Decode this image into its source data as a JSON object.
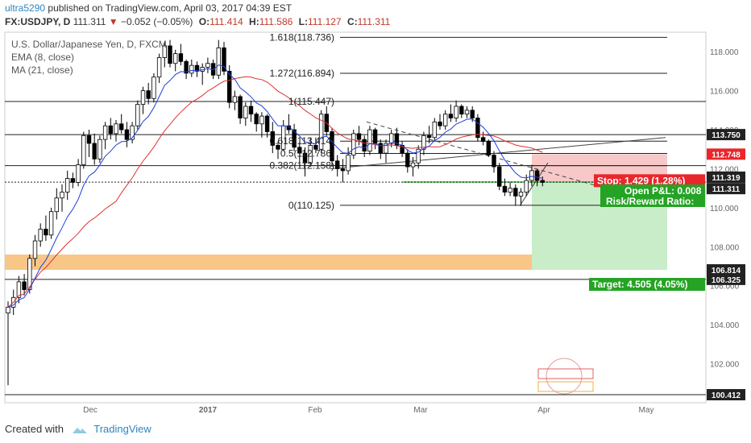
{
  "header": {
    "user": "ultra5290",
    "published": "published on TradingView.com, April 03, 2017 04:39 EST",
    "symbol": "FX:USDJPY, D",
    "last": "111.311",
    "change_arrow": "▼",
    "change": "−0.052 (−0.05%)",
    "o_label": "O:",
    "o": "111.414",
    "h_label": "H:",
    "h": "111.586",
    "l_label": "L:",
    "l": "111.127",
    "c_label": "C:",
    "c": "111.311"
  },
  "legend": {
    "title": "U.S. Dollar/Japanese Yen, D, FXCM",
    "ema": "EMA (8, close)",
    "ma": "MA (21, close)"
  },
  "footer": {
    "created_with": "Created with",
    "brand": "TradingView"
  },
  "colors": {
    "up": "#ffffff",
    "down": "#000000",
    "ema": "#1f3fd6",
    "ma": "#e03030",
    "stop_zone": "#f8c8c8",
    "target_zone": "#c9ecc9",
    "support_band": "#f7c07a",
    "stop_tag": "#e8262c",
    "target_tag": "#25a325",
    "price_tag": "#222222"
  },
  "chart_data": {
    "type": "candlestick",
    "ylim": [
      100.0,
      119.0
    ],
    "y_ticks": [
      "118.000",
      "116.000",
      "114.000",
      "112.000",
      "110.000",
      "108.000",
      "106.000",
      "104.000",
      "102.000"
    ],
    "x_ticks": [
      "Dec",
      "2017",
      "Feb",
      "Mar",
      "Apr",
      "May"
    ],
    "candles": [
      [
        104.6,
        105.2,
        100.9,
        104.9
      ],
      [
        104.9,
        105.8,
        104.5,
        105.4
      ],
      [
        105.4,
        106.5,
        105.1,
        106.2
      ],
      [
        106.2,
        106.6,
        105.5,
        105.8
      ],
      [
        105.8,
        107.6,
        105.6,
        107.4
      ],
      [
        107.4,
        108.6,
        107.0,
        108.3
      ],
      [
        108.3,
        109.2,
        108.0,
        108.9
      ],
      [
        108.9,
        109.6,
        108.3,
        108.6
      ],
      [
        108.6,
        110.0,
        108.4,
        109.8
      ],
      [
        109.8,
        111.0,
        109.4,
        110.5
      ],
      [
        110.5,
        111.2,
        109.8,
        110.8
      ],
      [
        110.8,
        111.9,
        110.4,
        111.5
      ],
      [
        111.5,
        111.8,
        111.0,
        111.3
      ],
      [
        111.3,
        112.5,
        111.1,
        112.2
      ],
      [
        112.2,
        113.9,
        112.0,
        113.7
      ],
      [
        113.7,
        114.0,
        112.6,
        113.3
      ],
      [
        113.3,
        113.8,
        112.2,
        112.5
      ],
      [
        112.5,
        113.7,
        112.3,
        113.5
      ],
      [
        113.5,
        114.4,
        113.0,
        114.2
      ],
      [
        114.2,
        114.6,
        113.5,
        113.8
      ],
      [
        113.8,
        114.5,
        113.4,
        114.3
      ],
      [
        114.3,
        114.8,
        113.8,
        114.0
      ],
      [
        114.0,
        114.4,
        113.1,
        113.5
      ],
      [
        113.5,
        114.4,
        113.3,
        114.2
      ],
      [
        114.2,
        115.5,
        114.0,
        115.3
      ],
      [
        115.3,
        116.2,
        114.8,
        116.0
      ],
      [
        116.0,
        116.4,
        115.3,
        115.6
      ],
      [
        115.6,
        116.9,
        115.4,
        116.7
      ],
      [
        116.7,
        117.9,
        116.4,
        117.7
      ],
      [
        117.7,
        118.5,
        117.2,
        118.3
      ],
      [
        118.3,
        118.6,
        117.2,
        117.4
      ],
      [
        117.4,
        118.1,
        117.0,
        117.9
      ],
      [
        117.9,
        118.4,
        117.3,
        117.5
      ],
      [
        117.5,
        117.6,
        116.6,
        116.9
      ],
      [
        116.9,
        117.6,
        116.7,
        117.3
      ],
      [
        117.3,
        117.5,
        116.7,
        117.0
      ],
      [
        117.0,
        117.4,
        116.3,
        117.2
      ],
      [
        117.2,
        117.7,
        116.9,
        117.4
      ],
      [
        117.4,
        117.6,
        116.6,
        116.8
      ],
      [
        116.8,
        118.6,
        116.6,
        118.2
      ],
      [
        118.2,
        118.5,
        116.8,
        117.0
      ],
      [
        117.0,
        117.3,
        115.1,
        115.4
      ],
      [
        115.4,
        116.0,
        115.0,
        115.7
      ],
      [
        115.7,
        115.8,
        114.3,
        114.6
      ],
      [
        114.6,
        115.4,
        114.2,
        115.2
      ],
      [
        115.2,
        115.5,
        114.4,
        114.8
      ],
      [
        114.8,
        114.9,
        113.9,
        114.3
      ],
      [
        114.3,
        114.9,
        113.6,
        114.7
      ],
      [
        114.7,
        114.8,
        113.6,
        113.9
      ],
      [
        113.9,
        114.4,
        112.8,
        113.2
      ],
      [
        113.2,
        113.4,
        112.5,
        113.0
      ],
      [
        113.0,
        114.5,
        112.9,
        114.2
      ],
      [
        114.2,
        114.8,
        113.8,
        114.0
      ],
      [
        114.0,
        114.3,
        112.9,
        113.1
      ],
      [
        113.1,
        113.4,
        112.1,
        112.8
      ],
      [
        112.8,
        113.1,
        111.6,
        112.3
      ],
      [
        112.3,
        113.6,
        112.1,
        113.2
      ],
      [
        113.2,
        113.6,
        112.8,
        113.0
      ],
      [
        113.0,
        115.0,
        112.8,
        114.8
      ],
      [
        114.8,
        115.2,
        113.7,
        113.9
      ],
      [
        113.9,
        114.1,
        112.1,
        112.4
      ],
      [
        112.4,
        112.7,
        111.6,
        112.0
      ],
      [
        112.0,
        112.5,
        111.3,
        111.9
      ],
      [
        111.9,
        113.1,
        111.7,
        112.7
      ],
      [
        112.7,
        114.0,
        112.5,
        113.8
      ],
      [
        113.8,
        114.2,
        113.2,
        113.5
      ],
      [
        113.5,
        113.7,
        112.6,
        112.9
      ],
      [
        112.9,
        114.2,
        112.7,
        114.0
      ],
      [
        114.0,
        114.1,
        113.0,
        113.3
      ],
      [
        113.3,
        113.5,
        112.5,
        112.8
      ],
      [
        112.8,
        113.5,
        112.3,
        113.3
      ],
      [
        113.3,
        114.0,
        113.1,
        113.8
      ],
      [
        113.8,
        114.1,
        113.0,
        113.2
      ],
      [
        113.2,
        113.4,
        112.6,
        112.8
      ],
      [
        112.8,
        113.0,
        111.8,
        112.1
      ],
      [
        112.1,
        112.6,
        111.6,
        112.3
      ],
      [
        112.3,
        113.2,
        112.0,
        113.0
      ],
      [
        113.0,
        113.9,
        112.7,
        113.7
      ],
      [
        113.7,
        114.2,
        113.3,
        113.6
      ],
      [
        113.6,
        114.6,
        113.4,
        114.4
      ],
      [
        114.4,
        114.8,
        114.0,
        114.2
      ],
      [
        114.2,
        115.0,
        114.0,
        114.8
      ],
      [
        114.8,
        115.3,
        114.4,
        114.6
      ],
      [
        114.6,
        115.5,
        114.4,
        115.2
      ],
      [
        115.2,
        115.3,
        114.6,
        114.8
      ],
      [
        114.8,
        115.2,
        114.6,
        115.0
      ],
      [
        115.0,
        115.2,
        114.4,
        114.6
      ],
      [
        114.6,
        114.8,
        113.4,
        113.6
      ],
      [
        113.6,
        113.9,
        113.2,
        113.4
      ],
      [
        113.4,
        113.5,
        112.6,
        112.7
      ],
      [
        112.7,
        112.9,
        111.8,
        112.1
      ],
      [
        112.1,
        112.3,
        110.9,
        111.1
      ],
      [
        111.1,
        111.5,
        110.6,
        110.8
      ],
      [
        110.8,
        111.3,
        110.6,
        111.0
      ],
      [
        111.0,
        111.2,
        110.1,
        110.6
      ],
      [
        110.6,
        111.0,
        110.1,
        110.8
      ],
      [
        110.8,
        111.7,
        110.6,
        111.4
      ],
      [
        111.4,
        112.2,
        111.1,
        111.9
      ],
      [
        111.9,
        112.0,
        111.1,
        111.4
      ],
      [
        111.4,
        111.6,
        111.1,
        111.3
      ]
    ],
    "fib_levels": [
      {
        "label": "1.618(118.736)",
        "value": 118.736
      },
      {
        "label": "1.272(116.894)",
        "value": 116.894
      },
      {
        "label": "1(115.447)",
        "value": 115.447
      },
      {
        "label": "0.618(113.414)",
        "value": 113.414
      },
      {
        "label": "0.5(112.786)",
        "value": 112.786
      },
      {
        "label": "0.382(112.158)",
        "value": 112.158
      },
      {
        "label": "0(110.125)",
        "value": 110.125
      }
    ],
    "horizontal_lines": [
      115.447,
      113.75,
      112.158,
      106.325,
      100.412
    ],
    "support_band": [
      106.814,
      107.6
    ],
    "position": {
      "entry": 111.319,
      "stop": 112.748,
      "target": 106.814,
      "stop_label": "Stop: 1.429 (1.28%)",
      "pnl_label": "Open P&L: 0.008",
      "rr_label": "Risk/Reward Ratio:",
      "target_label": "Target: 4.505 (4.05%)"
    },
    "price_tags": [
      {
        "value": 113.75,
        "label": "113.750",
        "kind": "dark"
      },
      {
        "value": 112.748,
        "label": "112.748",
        "kind": "red"
      },
      {
        "value": 111.319,
        "label": "111.319",
        "kind": "dark"
      },
      {
        "value": 111.311,
        "label": "111.311",
        "kind": "dark"
      },
      {
        "value": 106.814,
        "label": "106.814",
        "kind": "dark"
      },
      {
        "value": 106.325,
        "label": "106.325",
        "kind": "dark"
      },
      {
        "value": 100.412,
        "label": "100.412",
        "kind": "dark"
      }
    ]
  }
}
